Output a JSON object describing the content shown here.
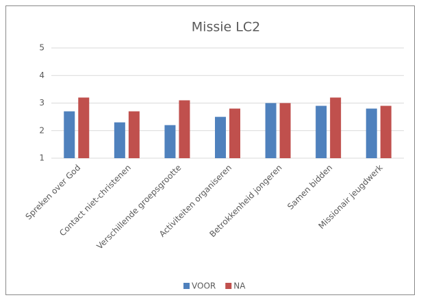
{
  "chart_data": {
    "type": "bar",
    "title": "Missie LC2",
    "categories": [
      "Spreken over God",
      "Contact niet-christenen",
      "Verschillende groepsgrootte",
      "Activiteiten organiseren",
      "Betrokkenheid jongeren",
      "Samen bidden",
      "Missionair jeugdwerk"
    ],
    "series": [
      {
        "name": "VOOR",
        "color": "#4f81bd",
        "values": [
          2.7,
          2.3,
          2.2,
          2.5,
          3.0,
          2.9,
          2.8
        ]
      },
      {
        "name": "NA",
        "color": "#c0504d",
        "values": [
          3.2,
          2.7,
          3.1,
          2.8,
          3.0,
          3.2,
          2.9
        ]
      }
    ],
    "ylim": [
      1,
      5
    ],
    "yticks": [
      1,
      2,
      3,
      4,
      5
    ],
    "grid": true,
    "legend": "bottom"
  }
}
